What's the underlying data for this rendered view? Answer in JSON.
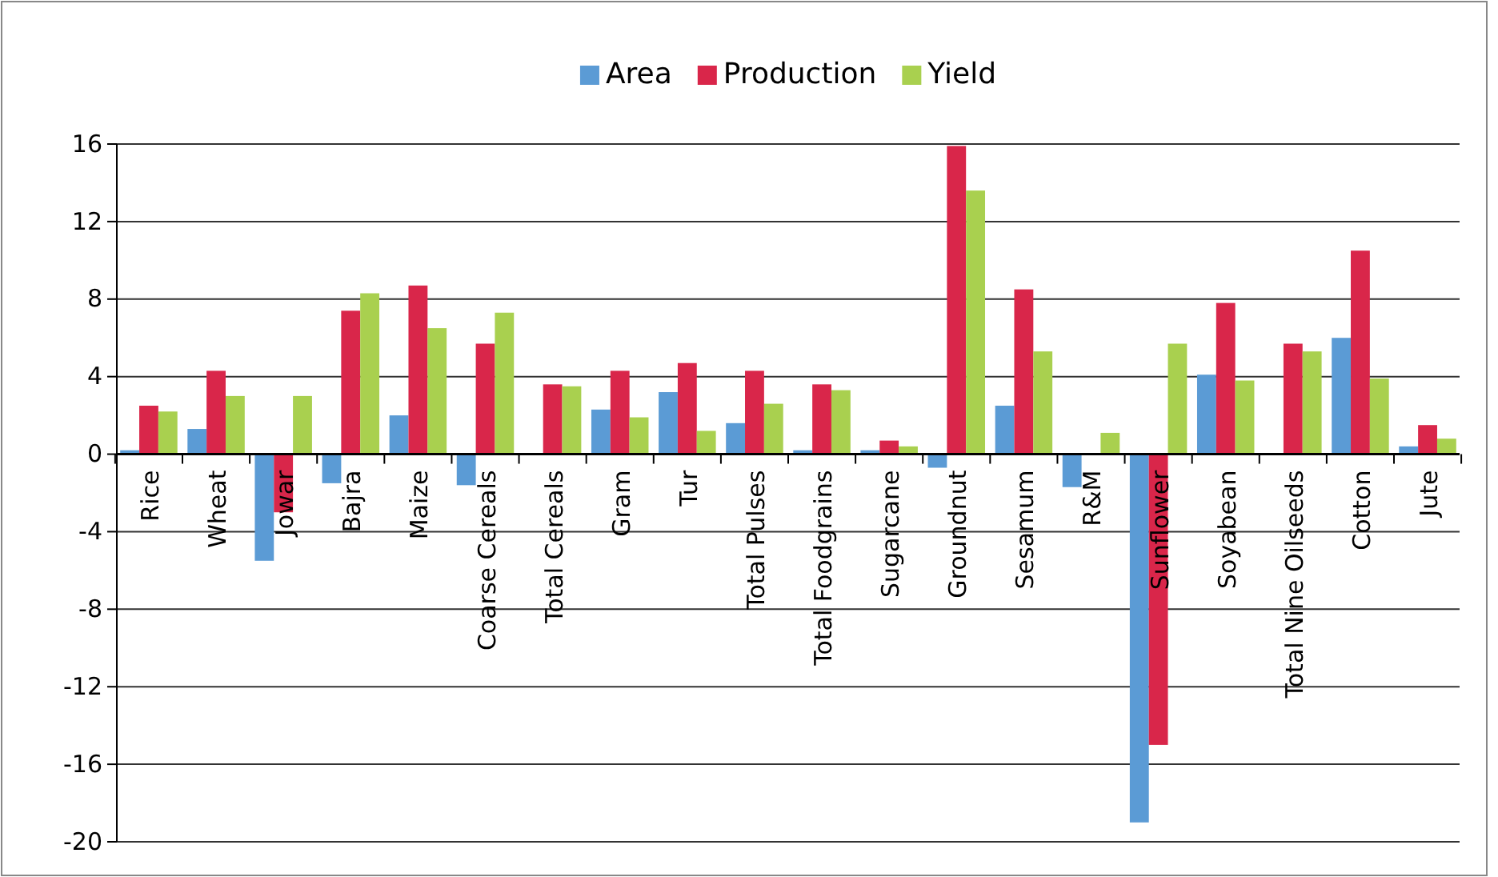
{
  "chart_data": {
    "type": "bar",
    "categories": [
      "Rice",
      "Wheat",
      "Jowar",
      "Bajra",
      "Maize",
      "Coarse Cereals",
      "Total Cereals",
      "Gram",
      "Tur",
      "Total Pulses",
      "Total Foodgrains",
      "Sugarcane",
      "Groundnut",
      "Sesamum",
      "R&M",
      "Sunflower",
      "Soyabean",
      "Total Nine Oilseeds",
      "Cotton",
      "Jute"
    ],
    "series": [
      {
        "name": "Area",
        "color": "#5b9bd5",
        "values": [
          0.2,
          1.3,
          -5.5,
          -1.5,
          2.0,
          -1.6,
          0,
          2.3,
          3.2,
          1.6,
          0.2,
          0.2,
          -0.7,
          2.5,
          -1.7,
          -19.0,
          4.1,
          0,
          6.0,
          0.4
        ]
      },
      {
        "name": "Production",
        "color": "#d9264a",
        "values": [
          2.5,
          4.3,
          -3.0,
          7.4,
          8.7,
          5.7,
          3.6,
          4.3,
          4.7,
          4.3,
          3.6,
          0.7,
          15.9,
          8.5,
          0,
          -15.0,
          7.8,
          5.7,
          10.5,
          1.5
        ]
      },
      {
        "name": "Yield",
        "color": "#a9d04f",
        "values": [
          2.2,
          3.0,
          3.0,
          8.3,
          6.5,
          7.3,
          3.5,
          1.9,
          1.2,
          2.6,
          3.3,
          0.4,
          13.6,
          5.3,
          1.1,
          5.7,
          3.8,
          5.3,
          3.9,
          0.8
        ]
      }
    ],
    "ylim": [
      -20,
      16
    ],
    "yticks": [
      -20,
      -16,
      -12,
      -8,
      -4,
      0,
      4,
      8,
      12,
      16
    ],
    "grid": "y",
    "legend": "top"
  }
}
